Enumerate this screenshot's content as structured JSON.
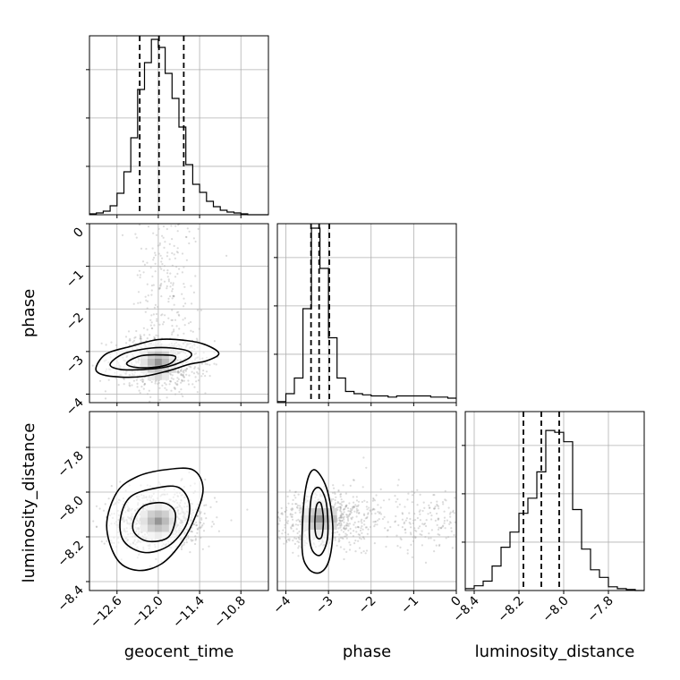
{
  "chart_data": {
    "type": "corner",
    "parameters": [
      {
        "name": "geocent_time",
        "label": "geocent_time",
        "range": [
          -13.0,
          -10.4
        ],
        "ticks": [
          -12.6,
          -12.0,
          -11.4,
          -10.8
        ],
        "tick_labels": [
          "−12.6",
          "−12.0",
          "−11.4",
          "−10.8"
        ],
        "quantiles": [
          -12.27,
          -11.99,
          -11.63
        ],
        "histogram": {
          "bin_edges": [
            -13.0,
            -12.9,
            -12.8,
            -12.7,
            -12.6,
            -12.5,
            -12.4,
            -12.3,
            -12.2,
            -12.1,
            -12.0,
            -11.9,
            -11.8,
            -11.7,
            -11.6,
            -11.5,
            -11.4,
            -11.3,
            -11.2,
            -11.1,
            -11.0,
            -10.9,
            -10.8,
            -10.7,
            -10.6,
            -10.5,
            -10.4
          ],
          "counts": [
            1,
            2,
            4,
            10,
            24,
            48,
            86,
            140,
            170,
            196,
            187,
            158,
            130,
            98,
            56,
            34,
            25,
            15,
            9,
            5,
            3,
            2,
            1,
            0,
            0,
            0
          ],
          "ymax": 200
        }
      },
      {
        "name": "phase",
        "label": "phase",
        "range": [
          -4.2,
          0.0
        ],
        "ticks": [
          -4,
          -3,
          -2,
          -1,
          0
        ],
        "tick_labels": [
          "−4",
          "−3",
          "−2",
          "−1",
          "0"
        ],
        "quantiles": [
          -3.41,
          -3.22,
          -2.98
        ],
        "histogram": {
          "bin_edges": [
            -4.2,
            -4.0,
            -3.8,
            -3.6,
            -3.4,
            -3.2,
            -3.0,
            -2.8,
            -2.6,
            -2.4,
            -2.2,
            -2.0,
            -1.8,
            -1.6,
            -1.4,
            -1.2,
            -1.0,
            -0.8,
            -0.6,
            -0.4,
            -0.2,
            0.0
          ],
          "counts": [
            1,
            8,
            22,
            84,
            156,
            120,
            58,
            22,
            10,
            8,
            7,
            6,
            6,
            5,
            6,
            6,
            6,
            6,
            5,
            5,
            4
          ],
          "ymax": 160
        }
      },
      {
        "name": "luminosity_distance",
        "label": "luminosity_distance",
        "range": [
          -8.44,
          -7.64
        ],
        "ticks": [
          -8.4,
          -8.2,
          -8.0,
          -7.8
        ],
        "tick_labels": [
          "−8.4",
          "−8.2",
          "−8.0",
          "−7.8"
        ],
        "quantiles": [
          -8.18,
          -8.1,
          -8.02
        ],
        "histogram": {
          "bin_edges": [
            -8.44,
            -8.4,
            -8.36,
            -8.32,
            -8.28,
            -8.24,
            -8.2,
            -8.16,
            -8.12,
            -8.08,
            -8.04,
            -8.0,
            -7.96,
            -7.92,
            -7.88,
            -7.84,
            -7.8,
            -7.76,
            -7.72,
            -7.68,
            -7.64
          ],
          "counts": [
            2,
            5,
            10,
            26,
            46,
            62,
            82,
            98,
            126,
            170,
            168,
            158,
            86,
            44,
            22,
            14,
            4,
            2,
            1,
            0
          ],
          "ymax": 190
        }
      }
    ],
    "contours_2d": [
      {
        "x": "geocent_time",
        "y": "phase",
        "y_ticks": [
          0,
          -1,
          -2,
          -3,
          -4
        ],
        "y_tick_labels": [
          "0",
          "−1",
          "−2",
          "−3",
          "−4"
        ],
        "peak": [
          -12.0,
          -3.25
        ],
        "levels": [
          [
            [
              -12.9,
              -3.35
            ],
            [
              -12.75,
              -3.05
            ],
            [
              -12.4,
              -2.88
            ],
            [
              -12.0,
              -2.72
            ],
            [
              -11.6,
              -2.74
            ],
            [
              -11.3,
              -2.85
            ],
            [
              -11.12,
              -3.05
            ],
            [
              -11.3,
              -3.22
            ],
            [
              -11.55,
              -3.3
            ],
            [
              -11.85,
              -3.45
            ],
            [
              -12.2,
              -3.58
            ],
            [
              -12.55,
              -3.6
            ],
            [
              -12.85,
              -3.52
            ]
          ],
          [
            [
              -12.7,
              -3.3
            ],
            [
              -12.5,
              -3.05
            ],
            [
              -12.1,
              -2.92
            ],
            [
              -11.8,
              -2.92
            ],
            [
              -11.55,
              -3.0
            ],
            [
              -11.55,
              -3.15
            ],
            [
              -11.85,
              -3.35
            ],
            [
              -12.2,
              -3.42
            ],
            [
              -12.55,
              -3.42
            ]
          ],
          [
            [
              -12.45,
              -3.25
            ],
            [
              -12.25,
              -3.1
            ],
            [
              -11.95,
              -3.08
            ],
            [
              -11.75,
              -3.12
            ],
            [
              -11.85,
              -3.3
            ],
            [
              -12.15,
              -3.38
            ],
            [
              -12.4,
              -3.35
            ]
          ]
        ]
      },
      {
        "x": "geocent_time",
        "y": "luminosity_distance",
        "y_ticks": [
          -7.8,
          -8.0,
          -8.2,
          -8.4
        ],
        "y_tick_labels": [
          "−7.8",
          "−8.0",
          "−8.2",
          "−8.4"
        ],
        "peak": [
          -12.0,
          -8.13
        ],
        "levels": [
          [
            [
              -12.75,
              -8.15
            ],
            [
              -12.6,
              -8.0
            ],
            [
              -12.3,
              -7.93
            ],
            [
              -11.9,
              -7.9
            ],
            [
              -11.5,
              -7.9
            ],
            [
              -11.35,
              -7.98
            ],
            [
              -11.45,
              -8.1
            ],
            [
              -11.65,
              -8.22
            ],
            [
              -11.95,
              -8.32
            ],
            [
              -12.3,
              -8.35
            ],
            [
              -12.6,
              -8.3
            ]
          ],
          [
            [
              -12.55,
              -8.12
            ],
            [
              -12.4,
              -8.02
            ],
            [
              -12.0,
              -7.98
            ],
            [
              -11.7,
              -7.98
            ],
            [
              -11.55,
              -8.05
            ],
            [
              -11.6,
              -8.15
            ],
            [
              -11.85,
              -8.24
            ],
            [
              -12.2,
              -8.27
            ],
            [
              -12.5,
              -8.22
            ]
          ],
          [
            [
              -12.35,
              -8.12
            ],
            [
              -12.2,
              -8.06
            ],
            [
              -11.9,
              -8.05
            ],
            [
              -11.75,
              -8.1
            ],
            [
              -11.85,
              -8.2
            ],
            [
              -12.15,
              -8.22
            ],
            [
              -12.35,
              -8.18
            ]
          ]
        ]
      },
      {
        "x": "phase",
        "y": "luminosity_distance",
        "peak": [
          -3.22,
          -8.12
        ],
        "levels": [
          [
            [
              -3.62,
              -8.25
            ],
            [
              -3.55,
              -8.0
            ],
            [
              -3.35,
              -7.9
            ],
            [
              -3.05,
              -7.98
            ],
            [
              -2.9,
              -8.15
            ],
            [
              -2.98,
              -8.3
            ],
            [
              -3.2,
              -8.36
            ],
            [
              -3.48,
              -8.34
            ]
          ],
          [
            [
              -3.45,
              -8.18
            ],
            [
              -3.4,
              -8.02
            ],
            [
              -3.22,
              -7.98
            ],
            [
              -3.05,
              -8.05
            ],
            [
              -3.02,
              -8.2
            ],
            [
              -3.18,
              -8.28
            ],
            [
              -3.38,
              -8.26
            ]
          ],
          [
            [
              -3.32,
              -8.14
            ],
            [
              -3.28,
              -8.06
            ],
            [
              -3.18,
              -8.05
            ],
            [
              -3.12,
              -8.12
            ],
            [
              -3.16,
              -8.2
            ],
            [
              -3.28,
              -8.2
            ]
          ]
        ]
      }
    ],
    "grid": true,
    "quantile_line_style": "dashed"
  }
}
